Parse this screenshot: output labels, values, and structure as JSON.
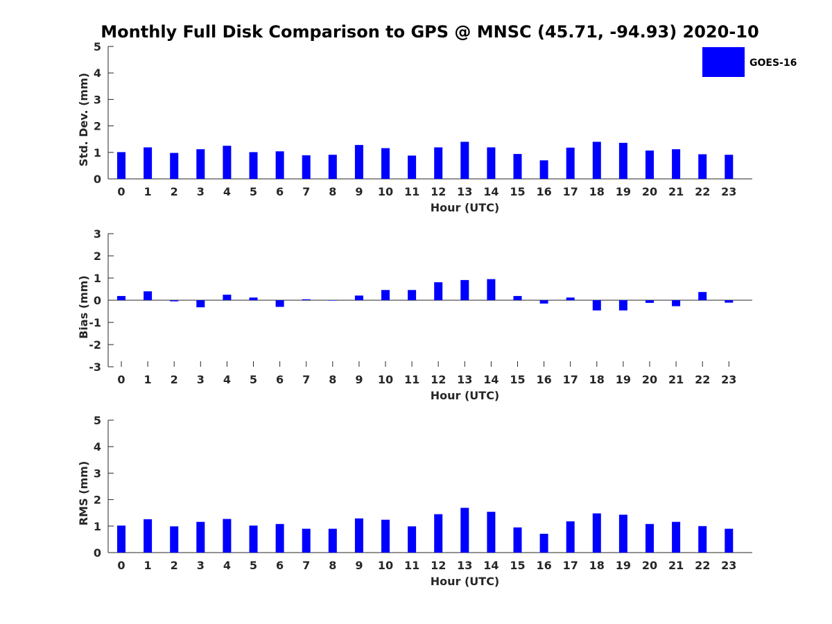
{
  "chart_data": {
    "type": "bar",
    "title": "Monthly Full Disk Comparison to GPS @ MNSC (45.71, -94.93) 2020-10",
    "legend": {
      "label": "GOES-16",
      "placement": "top-right"
    },
    "series_color": "#0000ff",
    "categories": [
      "0",
      "1",
      "2",
      "3",
      "4",
      "5",
      "6",
      "7",
      "8",
      "9",
      "10",
      "11",
      "12",
      "13",
      "14",
      "15",
      "16",
      "17",
      "18",
      "19",
      "20",
      "21",
      "22",
      "23"
    ],
    "panels": [
      {
        "id": "stddev",
        "ylabel": "Std. Dev. (mm)",
        "xlabel": "Hour (UTC)",
        "ylim": [
          0,
          5
        ],
        "yticks": [
          "0",
          "1",
          "2",
          "3",
          "4",
          "5"
        ],
        "values": [
          1.01,
          1.19,
          0.98,
          1.12,
          1.25,
          1.01,
          1.04,
          0.89,
          0.91,
          1.28,
          1.16,
          0.88,
          1.19,
          1.4,
          1.19,
          0.94,
          0.7,
          1.18,
          1.4,
          1.36,
          1.07,
          1.12,
          0.93,
          0.91
        ]
      },
      {
        "id": "bias",
        "ylabel": "Bias (mm)",
        "xlabel": "Hour (UTC)",
        "ylim": [
          -3,
          3
        ],
        "yticks": [
          "-3",
          "-2",
          "-1",
          "0",
          "1",
          "2",
          "3"
        ],
        "values": [
          0.19,
          0.4,
          -0.05,
          -0.32,
          0.25,
          0.12,
          -0.3,
          0.04,
          -0.02,
          0.21,
          0.46,
          0.46,
          0.81,
          0.91,
          0.95,
          0.19,
          -0.15,
          0.12,
          -0.46,
          -0.46,
          -0.12,
          -0.27,
          0.37,
          -0.11
        ]
      },
      {
        "id": "rms",
        "ylabel": "RMS (mm)",
        "xlabel": "Hour (UTC)",
        "ylim": [
          0,
          5
        ],
        "yticks": [
          "0",
          "1",
          "2",
          "3",
          "4",
          "5"
        ],
        "values": [
          1.02,
          1.26,
          0.99,
          1.16,
          1.27,
          1.02,
          1.08,
          0.9,
          0.9,
          1.29,
          1.24,
          0.99,
          1.45,
          1.69,
          1.54,
          0.95,
          0.71,
          1.18,
          1.48,
          1.43,
          1.08,
          1.16,
          1.0,
          0.9
        ]
      }
    ]
  }
}
